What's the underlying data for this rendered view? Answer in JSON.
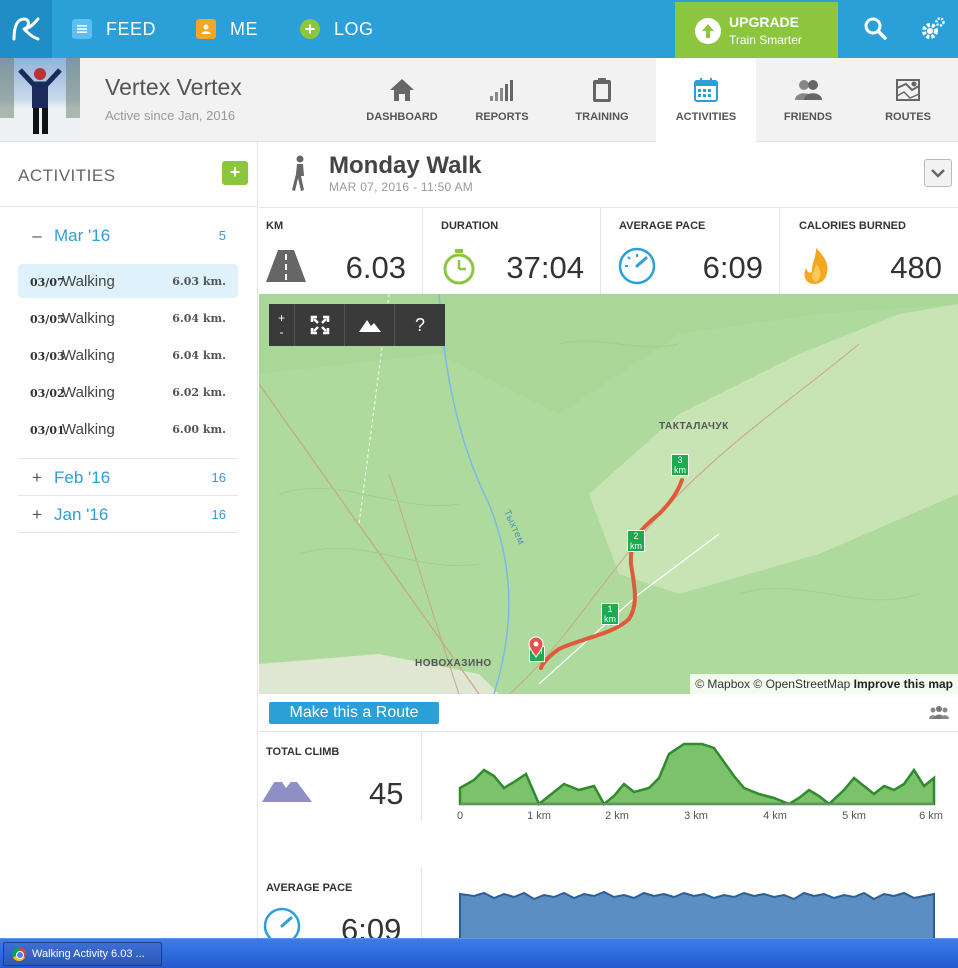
{
  "nav": {
    "feed": "FEED",
    "me": "ME",
    "log": "LOG",
    "upgrade_title": "UPGRADE",
    "upgrade_sub": "Train Smarter"
  },
  "profile": {
    "name": "Vertex Vertex",
    "since": "Active since Jan, 2016",
    "tabs": [
      "DASHBOARD",
      "REPORTS",
      "TRAINING",
      "ACTIVITIES",
      "FRIENDS",
      "ROUTES"
    ],
    "active_tab": "ACTIVITIES"
  },
  "sidebar": {
    "title": "ACTIVITIES",
    "add": "+",
    "months": [
      {
        "sign": "–",
        "name": "Mar '16",
        "count": "5"
      },
      {
        "sign": "+",
        "name": "Feb '16",
        "count": "16"
      },
      {
        "sign": "+",
        "name": "Jan '16",
        "count": "16"
      }
    ],
    "activities": [
      {
        "date": "03/07",
        "type": "Walking",
        "km": "6.03 km."
      },
      {
        "date": "03/05",
        "type": "Walking",
        "km": "6.04 km."
      },
      {
        "date": "03/03",
        "type": "Walking",
        "km": "6.04 km."
      },
      {
        "date": "03/02",
        "type": "Walking",
        "km": "6.02 km."
      },
      {
        "date": "03/01",
        "type": "Walking",
        "km": "6.00 km."
      }
    ]
  },
  "activity": {
    "title": "Monday Walk",
    "date": "MAR 07, 2016 - 11:50 AM"
  },
  "stats": {
    "km_label": "KM",
    "km": "6.03",
    "duration_label": "DURATION",
    "duration": "37:04",
    "pace_label": "AVERAGE PACE",
    "pace": "6:09",
    "cal_label": "CALORIES BURNED",
    "cal": "480"
  },
  "map": {
    "controls": {
      "plus": "+",
      "minus": "-",
      "help": "?"
    },
    "labels": {
      "village1": "ТАКТАЛАЧУК",
      "village2": "НОВОХАЗИНО",
      "river": "Тыхтем"
    },
    "markers": [
      {
        "num": "1",
        "unit": "km"
      },
      {
        "num": "2",
        "unit": "km"
      },
      {
        "num": "3",
        "unit": "km"
      },
      {
        "num": "",
        "unit": "km"
      }
    ],
    "attribution": {
      "mapbox": "© Mapbox",
      "osm": "© OpenStreetMap",
      "improve": "Improve this map"
    }
  },
  "route_button": "Make this a Route",
  "climb": {
    "label": "TOTAL CLIMB",
    "value": "45",
    "xticks": [
      "0",
      "1 km",
      "2 km",
      "3 km",
      "4 km",
      "5 km",
      "6 km"
    ]
  },
  "pace_chart": {
    "label": "AVERAGE PACE",
    "value": "6:09"
  },
  "taskbar": {
    "window": "Walking Activity 6.03 ..."
  },
  "colors": {
    "brand_blue": "#2a9fd8",
    "upgrade_green": "#8cc63f",
    "route_red": "#e05a3a",
    "elevation_fill": "#7cc26a",
    "pace_fill": "#5b8fc4"
  }
}
